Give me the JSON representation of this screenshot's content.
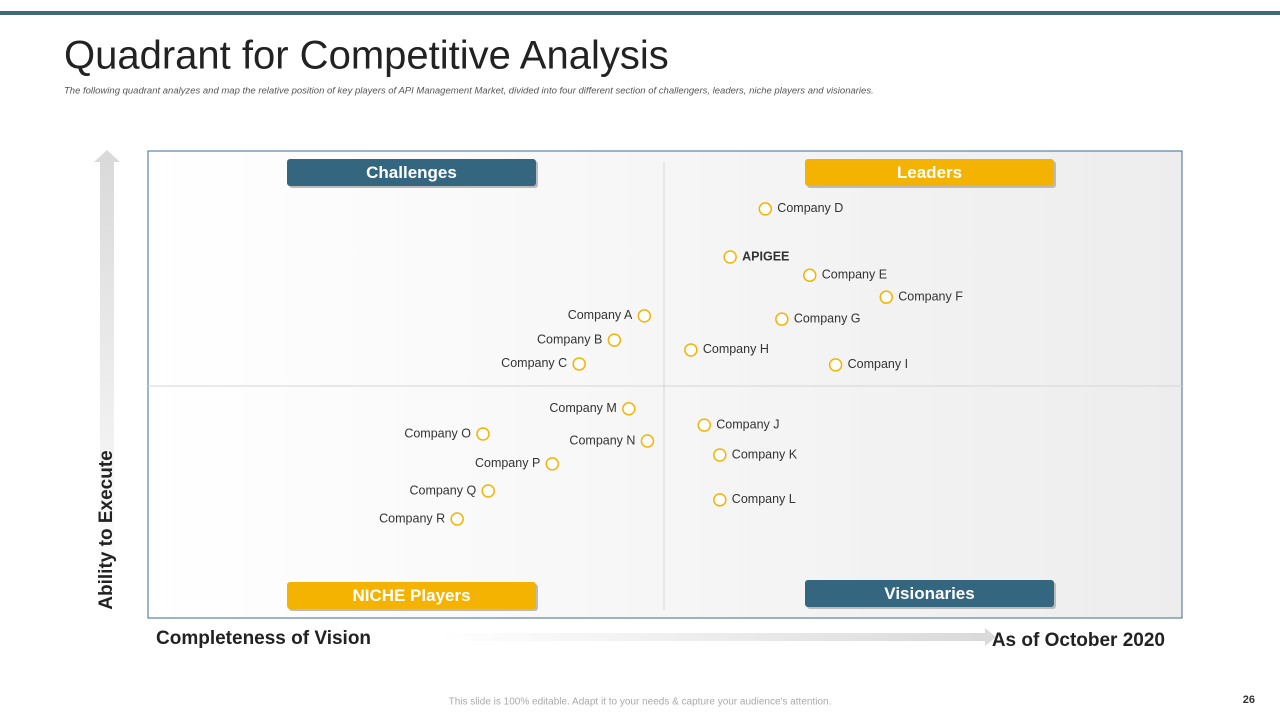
{
  "chart_data": {
    "type": "scatter",
    "title": "Quadrant for Competitive Analysis",
    "subtitle": "The following quadrant analyzes and map the relative position of  key players of API Management Market, divided into four different section of challengers, leaders, niche players and visionaries.",
    "x_label": "Completeness of Vision",
    "y_label": "Ability to Execute",
    "note": "As of October 2020",
    "xlim": [
      0,
      100
    ],
    "ylim": [
      0,
      100
    ],
    "point_color": "#f5b301",
    "quadrants": [
      {
        "label": "Challenges",
        "color": "#34677f"
      },
      {
        "label": "Leaders",
        "color": "#f5b301"
      },
      {
        "label": "NICHE Players",
        "color": "#f5b301"
      },
      {
        "label": "Visionaries",
        "color": "#34677f"
      }
    ],
    "points": [
      {
        "label": "Company D",
        "x": 59.7,
        "y": 87.6
      },
      {
        "label": "APIGEE",
        "x": 56.3,
        "y": 77.3
      },
      {
        "label": "Company E",
        "x": 64.0,
        "y": 73.4
      },
      {
        "label": "Company F",
        "x": 71.4,
        "y": 68.7
      },
      {
        "label": "Company G",
        "x": 61.3,
        "y": 64.0
      },
      {
        "label": "Company H",
        "x": 52.5,
        "y": 57.4
      },
      {
        "label": "Company I",
        "x": 66.5,
        "y": 54.2
      },
      {
        "label": "Company A",
        "x": 48.0,
        "y": 64.7
      },
      {
        "label": "Company B",
        "x": 45.1,
        "y": 59.5
      },
      {
        "label": "Company C",
        "x": 41.7,
        "y": 54.4
      },
      {
        "label": "Company M",
        "x": 46.5,
        "y": 44.8
      },
      {
        "label": "Company O",
        "x": 32.4,
        "y": 39.4
      },
      {
        "label": "Company N",
        "x": 48.3,
        "y": 37.9
      },
      {
        "label": "Company P",
        "x": 39.1,
        "y": 33.0
      },
      {
        "label": "Company Q",
        "x": 32.9,
        "y": 27.2
      },
      {
        "label": "Company R",
        "x": 29.9,
        "y": 21.2
      },
      {
        "label": "Company J",
        "x": 53.8,
        "y": 41.3
      },
      {
        "label": "Company K",
        "x": 55.3,
        "y": 34.9
      },
      {
        "label": "Company L",
        "x": 55.3,
        "y": 25.3
      }
    ]
  },
  "footer": "This slide is 100% editable. Adapt it to your needs & capture your audience's attention.",
  "page_number": "26"
}
